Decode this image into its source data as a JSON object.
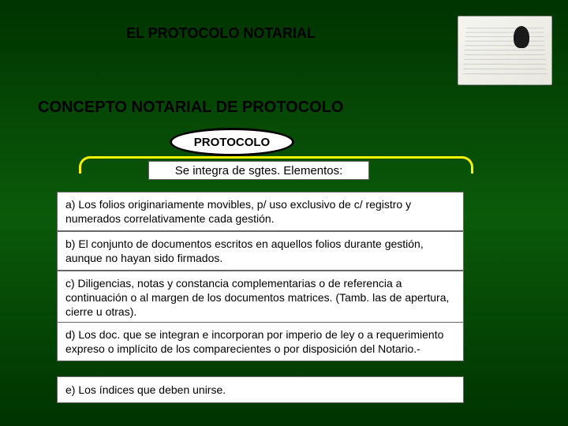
{
  "header": {
    "title": "EL PROTOCOLO NOTARIAL"
  },
  "subtitle": "CONCEPTO NOTARIAL DE PROTOCOLO",
  "oval_label": "PROTOCOLO",
  "integra_text": "Se integra de sgtes. Elementos:",
  "items": {
    "a": "a)  Los folios originariamente movibles, p/ uso exclusivo de c/ registro  y numerados correlativamente cada gestión.",
    "b": "b) El conjunto de documentos escritos en aquellos folios durante gestión, aunque no hayan sido firmados.",
    "c": "c) Diligencias, notas y constancia complementarias o de referencia a continuación o al margen de los documentos matrices. (Tamb. las de apertura, cierre u otras).",
    "d": "d) Los doc. que se integran e incorporan  por imperio de ley o a requerimiento expreso o implícito de los comparecientes o por disposición del Notario.-",
    "e": "e) Los índices que deben unirse."
  },
  "colors": {
    "background_top": "#003300",
    "background_mid": "#0a5a0a",
    "bracket": "#fff200",
    "box_bg": "#ffffff",
    "text": "#000000"
  }
}
